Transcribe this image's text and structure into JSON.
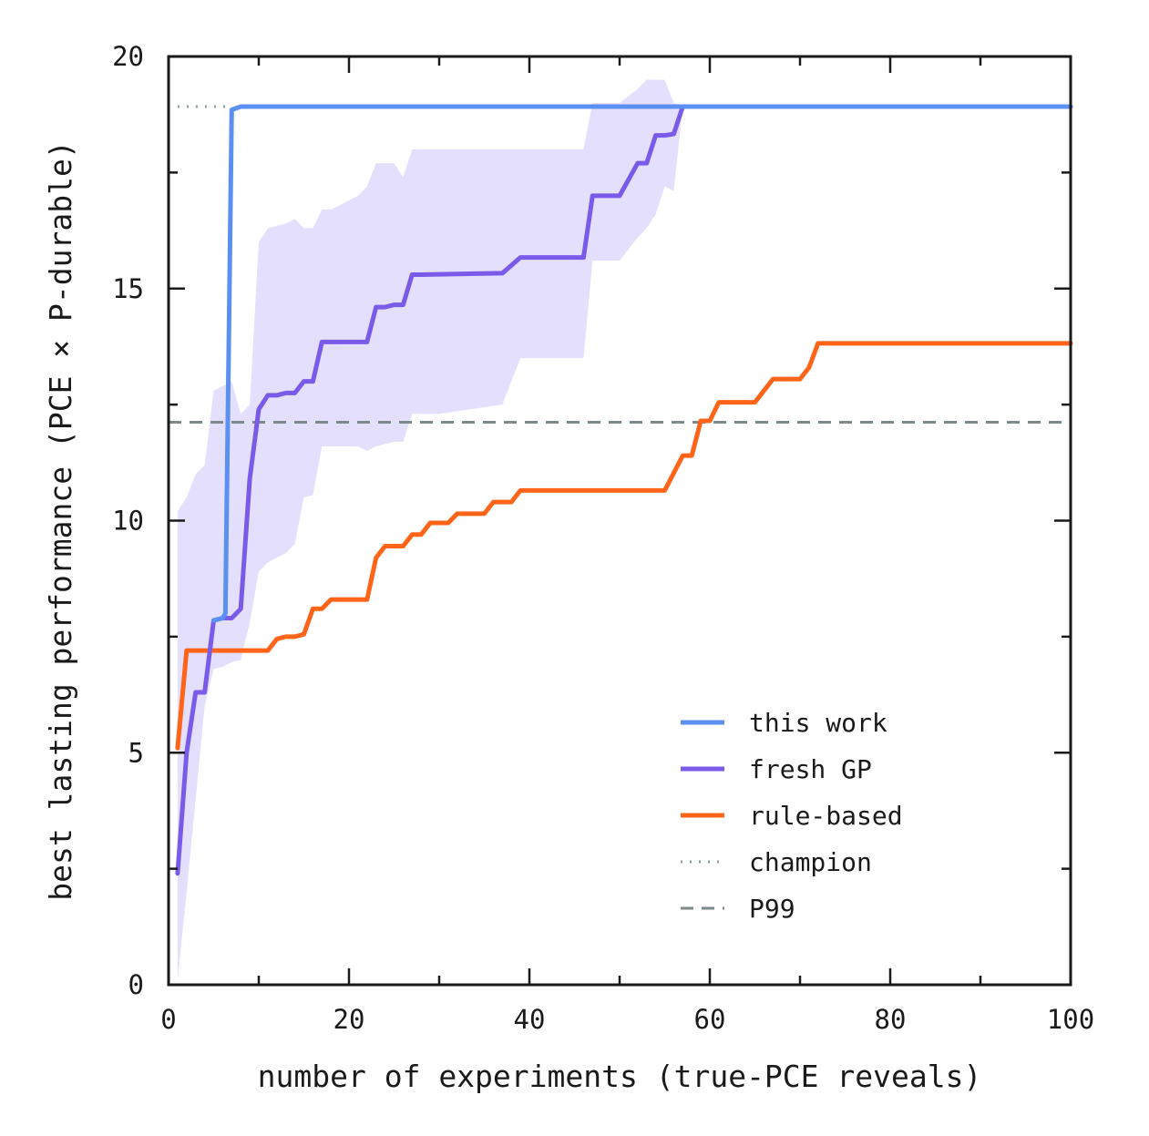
{
  "chart_data": {
    "type": "line",
    "xlabel": "number of experiments (true-PCE reveals)",
    "ylabel": "best lasting performance (PCE × P-durable)",
    "xlim": [
      0,
      100
    ],
    "ylim": [
      0,
      20
    ],
    "x_ticks": [
      0,
      20,
      40,
      60,
      80,
      100
    ],
    "y_ticks": [
      0,
      5,
      10,
      15,
      20
    ],
    "grid": false,
    "legend_position": "bottom-right",
    "series": [
      {
        "name": "this work",
        "color": "#5b8ff0",
        "style": "solid",
        "points": [
          [
            5,
            7.85
          ],
          [
            6,
            7.9
          ],
          [
            6.3,
            8.0
          ],
          [
            7,
            18.85
          ],
          [
            8,
            18.92
          ],
          [
            100,
            18.92
          ]
        ]
      },
      {
        "name": "fresh GP",
        "color": "#7a5ae8",
        "style": "solid",
        "points": [
          [
            1,
            2.4
          ],
          [
            2,
            5.0
          ],
          [
            3,
            6.3
          ],
          [
            4,
            6.3
          ],
          [
            5,
            7.85
          ],
          [
            6,
            7.9
          ],
          [
            7,
            7.9
          ],
          [
            8,
            8.1
          ],
          [
            9,
            10.9
          ],
          [
            10,
            12.4
          ],
          [
            11,
            12.7
          ],
          [
            12,
            12.7
          ],
          [
            13,
            12.75
          ],
          [
            14,
            12.75
          ],
          [
            15,
            13.0
          ],
          [
            16,
            13.0
          ],
          [
            17,
            13.85
          ],
          [
            18,
            13.85
          ],
          [
            21,
            13.85
          ],
          [
            22,
            13.85
          ],
          [
            23,
            14.6
          ],
          [
            24,
            14.6
          ],
          [
            25,
            14.65
          ],
          [
            26,
            14.65
          ],
          [
            27,
            15.3
          ],
          [
            28,
            15.3
          ],
          [
            37,
            15.33
          ],
          [
            39,
            15.67
          ],
          [
            46,
            15.67
          ],
          [
            47,
            17.0
          ],
          [
            49,
            17.0
          ],
          [
            50,
            17.0
          ],
          [
            52,
            17.7
          ],
          [
            53,
            17.7
          ],
          [
            54,
            18.3
          ],
          [
            55,
            18.3
          ],
          [
            56,
            18.33
          ],
          [
            57,
            18.92
          ],
          [
            100,
            18.92
          ]
        ]
      },
      {
        "name": "rule-based",
        "color": "#ff6418",
        "style": "solid",
        "points": [
          [
            1,
            5.1
          ],
          [
            2,
            7.2
          ],
          [
            10,
            7.2
          ],
          [
            11,
            7.2
          ],
          [
            12,
            7.45
          ],
          [
            13,
            7.5
          ],
          [
            14,
            7.5
          ],
          [
            15,
            7.55
          ],
          [
            16,
            8.1
          ],
          [
            17,
            8.1
          ],
          [
            18,
            8.3
          ],
          [
            22,
            8.3
          ],
          [
            23,
            9.2
          ],
          [
            24,
            9.45
          ],
          [
            26,
            9.45
          ],
          [
            27,
            9.7
          ],
          [
            28,
            9.7
          ],
          [
            29,
            9.95
          ],
          [
            31,
            9.95
          ],
          [
            32,
            10.15
          ],
          [
            35,
            10.15
          ],
          [
            36,
            10.4
          ],
          [
            38,
            10.4
          ],
          [
            39,
            10.65
          ],
          [
            55,
            10.65
          ],
          [
            57,
            11.4
          ],
          [
            58,
            11.4
          ],
          [
            59,
            12.15
          ],
          [
            60,
            12.15
          ],
          [
            61,
            12.55
          ],
          [
            65,
            12.55
          ],
          [
            67,
            13.05
          ],
          [
            70,
            13.05
          ],
          [
            71,
            13.3
          ],
          [
            72,
            13.82
          ],
          [
            100,
            13.82
          ]
        ]
      },
      {
        "name": "champion",
        "color": "#8a9ea0",
        "style": "dotted",
        "points": [
          [
            1,
            18.92
          ],
          [
            7,
            18.92
          ]
        ]
      },
      {
        "name": "P99",
        "color": "#7d8a8c",
        "style": "dashed",
        "points": [
          [
            0,
            12.12
          ],
          [
            100,
            12.12
          ]
        ]
      }
    ],
    "band": {
      "color": "#d9d2fb",
      "points": [
        [
          1,
          10.2,
          0.1
        ],
        [
          2,
          10.5,
          2.0
        ],
        [
          3,
          11.0,
          4.0
        ],
        [
          4,
          11.2,
          6.0
        ],
        [
          5,
          12.8,
          6.8
        ],
        [
          6,
          12.9,
          6.85
        ],
        [
          7,
          13.0,
          6.95
        ],
        [
          8,
          12.3,
          7.0
        ],
        [
          9,
          12.5,
          7.8
        ],
        [
          10,
          16.0,
          8.9
        ],
        [
          11,
          16.3,
          9.1
        ],
        [
          13,
          16.4,
          9.3
        ],
        [
          14,
          16.5,
          9.5
        ],
        [
          15,
          16.3,
          10.5
        ],
        [
          16,
          16.3,
          10.55
        ],
        [
          17,
          16.7,
          11.6
        ],
        [
          18,
          16.7,
          11.6
        ],
        [
          21,
          17.0,
          11.6
        ],
        [
          22,
          17.2,
          11.5
        ],
        [
          23,
          17.7,
          11.6
        ],
        [
          25,
          17.7,
          11.7
        ],
        [
          26,
          17.4,
          11.7
        ],
        [
          27,
          18.0,
          12.3
        ],
        [
          30,
          18.0,
          12.3
        ],
        [
          37,
          18.0,
          12.5
        ],
        [
          39,
          18.0,
          13.5
        ],
        [
          46,
          18.0,
          13.5
        ],
        [
          47,
          19.0,
          15.6
        ],
        [
          50,
          19.0,
          15.6
        ],
        [
          52,
          19.3,
          16.1
        ],
        [
          53,
          19.5,
          16.3
        ],
        [
          54,
          19.5,
          16.6
        ],
        [
          55,
          19.5,
          17.2
        ],
        [
          56,
          19.0,
          17.1
        ],
        [
          57,
          18.92,
          18.92
        ]
      ]
    }
  }
}
